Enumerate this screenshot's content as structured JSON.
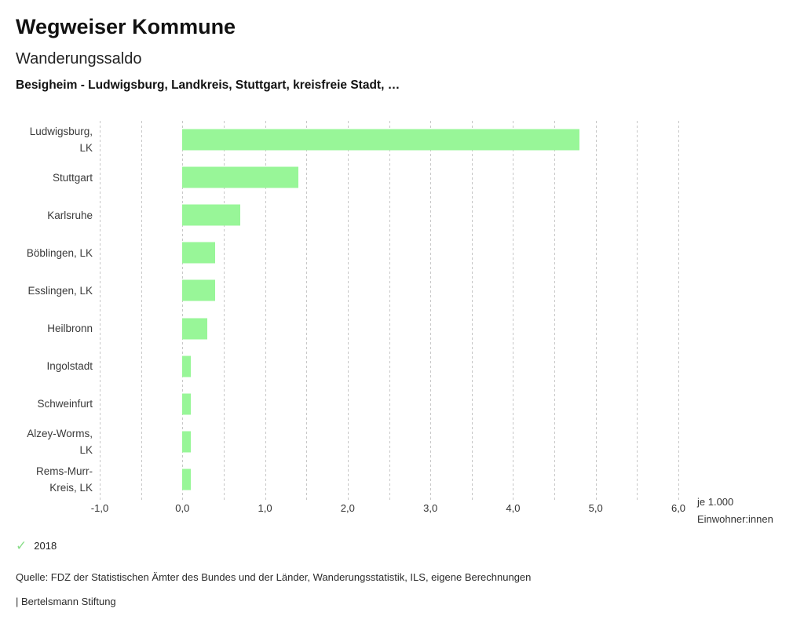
{
  "header": {
    "app_title": "Wegweiser Kommune",
    "chart_title": "Wanderungssaldo",
    "chart_subtitle": "Besigheim - Ludwigsburg, Landkreis, Stuttgart, kreisfreie Stadt, …"
  },
  "chart_data": {
    "type": "bar",
    "orientation": "horizontal",
    "title": "Wanderungssaldo",
    "subtitle": "Besigheim - Ludwigsburg, Landkreis, Stuttgart, kreisfreie Stadt, …",
    "categories": [
      "Ludwigsburg, LK",
      "Stuttgart",
      "Karlsruhe",
      "Böblingen, LK",
      "Esslingen, LK",
      "Heilbronn",
      "Ingolstadt",
      "Schweinfurt",
      "Alzey-Worms, LK",
      "Rems-Murr-Kreis, LK"
    ],
    "category_display": [
      "Ludwigsburg,\nLK",
      "Stuttgart",
      "Karlsruhe",
      "Böblingen, LK",
      "Esslingen, LK",
      "Heilbronn",
      "Ingolstadt",
      "Schweinfurt",
      "Alzey-Worms,\nLK",
      "Rems-Murr-\nKreis, LK"
    ],
    "series": [
      {
        "name": "2018",
        "values": [
          4.8,
          1.4,
          0.7,
          0.4,
          0.4,
          0.3,
          0.1,
          0.1,
          0.1,
          0.1
        ]
      }
    ],
    "xlabel": "je 1.000\nEinwohner:innen",
    "ylabel": "",
    "xlim": [
      -1.0,
      6.0
    ],
    "gridline_step": 0.5,
    "grid": true,
    "x_ticks": [
      -1,
      0,
      1,
      2,
      3,
      4,
      5,
      6
    ],
    "x_tick_labels": [
      "-1,0",
      "0,0",
      "1,0",
      "2,0",
      "3,0",
      "4,0",
      "5,0",
      "6,0"
    ],
    "bar_color": "#98f698",
    "legend_position": "bottom-left"
  },
  "legend": {
    "check_icon": "✓",
    "check_color": "#8ade8a",
    "label": "2018"
  },
  "footer": {
    "source": "Quelle: FDZ der Statistischen Ämter des Bundes und der Länder, Wanderungsstatistik, ILS, eigene Berechnungen",
    "branding": "| Bertelsmann Stiftung"
  }
}
